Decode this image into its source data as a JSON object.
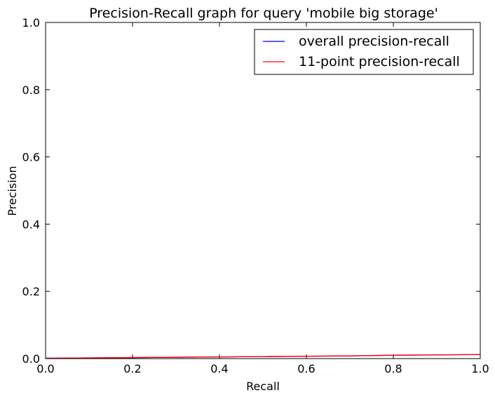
{
  "chart_data": {
    "type": "line",
    "title": "Precision-Recall graph for query 'mobile big storage'",
    "xlabel": "Recall",
    "ylabel": "Precision",
    "xlim": [
      0.0,
      1.0
    ],
    "ylim": [
      0.0,
      1.0
    ],
    "xticks": [
      "0.0",
      "0.2",
      "0.4",
      "0.6",
      "0.8",
      "1.0"
    ],
    "yticks": [
      "0.0",
      "0.2",
      "0.4",
      "0.6",
      "0.8",
      "1.0"
    ],
    "grid": false,
    "legend_position": "top-right",
    "series": [
      {
        "name": "overall precision-recall",
        "color": "#0000ff",
        "x": [
          0.0,
          0.1,
          0.2,
          0.3,
          0.4,
          0.5,
          0.6,
          0.7,
          0.8,
          0.9,
          1.0
        ],
        "y": [
          0.001,
          0.002,
          0.003,
          0.004,
          0.005,
          0.006,
          0.007,
          0.008,
          0.01,
          0.011,
          0.012
        ]
      },
      {
        "name": "11-point precision-recall",
        "color": "#ff0000",
        "x": [
          0.0,
          0.1,
          0.2,
          0.3,
          0.4,
          0.5,
          0.6,
          0.7,
          0.8,
          0.9,
          1.0
        ],
        "y": [
          0.001,
          0.002,
          0.003,
          0.004,
          0.005,
          0.006,
          0.007,
          0.008,
          0.01,
          0.011,
          0.012
        ]
      }
    ]
  }
}
